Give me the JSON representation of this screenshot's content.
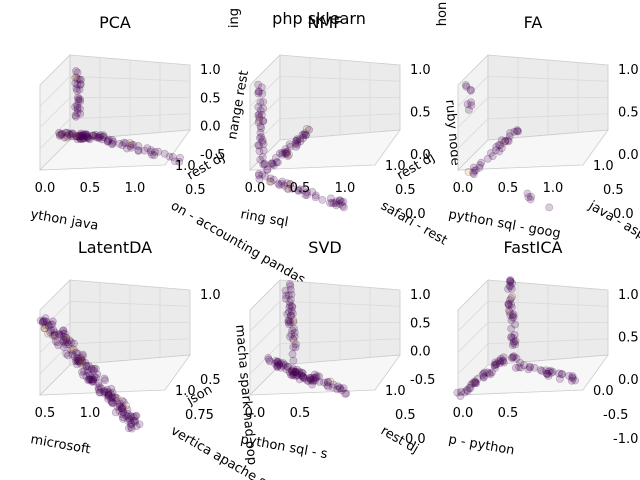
{
  "figure": {
    "suptitle": "php sklearn",
    "top_fragments": [
      "ing",
      "hon"
    ]
  },
  "colors": {
    "point_fill": "#440154",
    "point_highlight": "#b8962e",
    "pane_fill": "#f2f2f2",
    "grid": "#d9d9d9"
  },
  "chart_data": [
    {
      "type": "scatter",
      "title": "PCA",
      "xticks": [
        "0.0",
        "0.5",
        "1.0"
      ],
      "zticks": [
        "1.0",
        "0.5",
        "0.0",
        "-0.5"
      ],
      "yticks": [
        "1.0",
        "0.5"
      ],
      "xlabel": "ython java",
      "ylabel": "on  -  accounting pandas",
      "zlabel": "",
      "ylabel_extra": "rest dj",
      "zlabel_extra": "nange rest"
    },
    {
      "type": "scatter",
      "title": "NMF",
      "xticks": [
        "0.0",
        "0.5",
        "1.0"
      ],
      "zticks": [
        "1.0",
        "0.5",
        "0.0"
      ],
      "yticks": [
        "1.0",
        "0.5",
        "0.0"
      ],
      "xlabel": "ring sql",
      "ylabel": "safari  -  rest",
      "zlabel": "ruby node",
      "ylabel_extra": "rest dj",
      "zlabel_extra": ""
    },
    {
      "type": "scatter",
      "title": "FA",
      "xticks": [
        "0.0",
        "0.5",
        "1.0"
      ],
      "zticks": [
        "1.0",
        "0.5",
        "0.0"
      ],
      "yticks": [
        "1.0",
        "0.5",
        "0.0"
      ],
      "xlabel": "python sql  -  goog",
      "ylabel": "java  -  asp n",
      "zlabel": "",
      "ylabel_extra": "",
      "zlabel_extra": ""
    },
    {
      "type": "scatter",
      "title": "LatentDA",
      "xticks": [
        "0.5",
        "1.0"
      ],
      "zticks": [
        "1.0",
        "0.5"
      ],
      "yticks": [
        "1.0",
        "0.75"
      ],
      "xlabel": "microsoft",
      "ylabel": "vertica  apache sp",
      "zlabel": "macha spark had oop",
      "ylabel_extra": "json",
      "zlabel_extra": ""
    },
    {
      "type": "scatter",
      "title": "SVD",
      "xticks": [
        "0.0",
        "0.5"
      ],
      "zticks": [
        "1.0",
        "0.5",
        "0.0",
        "-0.5"
      ],
      "yticks": [
        "1.0",
        "0.5",
        "0.0"
      ],
      "xlabel": "python sql  -  s",
      "ylabel": "rest dj",
      "zlabel": "",
      "ylabel_extra": "",
      "zlabel_extra": ""
    },
    {
      "type": "scatter",
      "title": "FastICA",
      "xticks": [
        "0.0",
        "0.5"
      ],
      "zticks": [
        "1.0",
        "0.5",
        "0.0"
      ],
      "yticks": [
        "0.0",
        "-0.5",
        "-1.0"
      ],
      "xlabel": "p  -  python",
      "ylabel": "",
      "zlabel": "",
      "ylabel_extra": "",
      "zlabel_extra": ""
    }
  ]
}
